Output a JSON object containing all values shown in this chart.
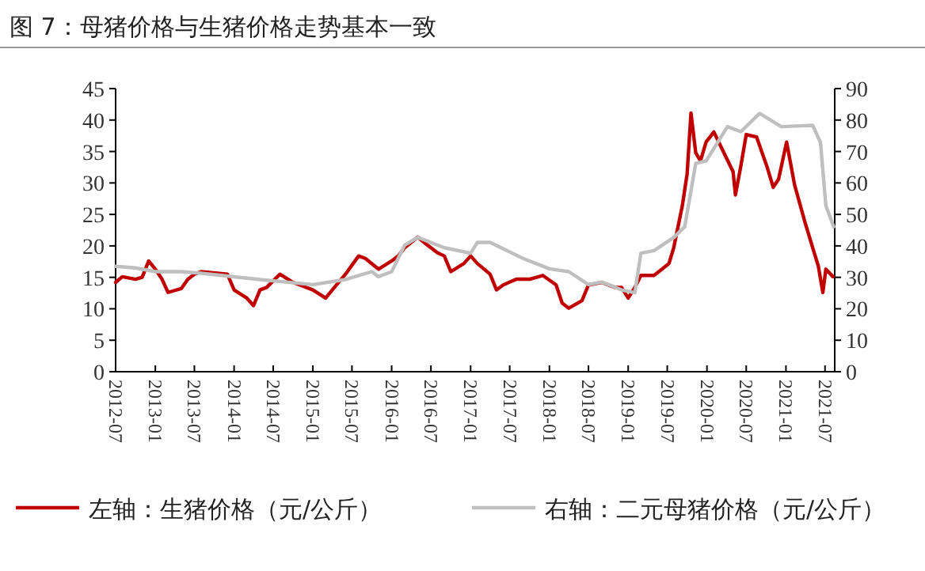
{
  "chart_data": {
    "type": "line",
    "title": "图 7：母猪价格与生猪价格走势基本一致",
    "xlim": [
      "2012-07",
      "2021-08-15"
    ],
    "xticks": [
      "2012-07",
      "2013-01",
      "2013-07",
      "2014-01",
      "2014-07",
      "2015-01",
      "2015-07",
      "2016-01",
      "2016-07",
      "2017-01",
      "2017-07",
      "2018-01",
      "2018-07",
      "2019-01",
      "2019-07",
      "2020-01",
      "2020-07",
      "2021-01",
      "2021-07"
    ],
    "ylim": [
      0,
      45
    ],
    "yticks": [
      0,
      5,
      10,
      15,
      20,
      25,
      30,
      35,
      40,
      45
    ],
    "y2lim": [
      0,
      90
    ],
    "y2ticks": [
      0,
      10,
      20,
      30,
      40,
      50,
      60,
      70,
      80,
      90
    ],
    "grid": false,
    "legend": "bottom",
    "marker": "none",
    "line_style": "solid",
    "series": [
      {
        "name": "左轴：生猪价格（元/公斤）",
        "color": "#c00000",
        "x": [
          "2012-07",
          "2012-08",
          "2012-10",
          "2012-11",
          "2012-12",
          "2013-01",
          "2013-02",
          "2013-03",
          "2013-05",
          "2013-06",
          "2013-07",
          "2013-08",
          "2013-12",
          "2014-01",
          "2014-03",
          "2014-04",
          "2014-05",
          "2014-06",
          "2014-08",
          "2014-10",
          "2015-01",
          "2015-03",
          "2015-04",
          "2015-06",
          "2015-08",
          "2015-09",
          "2015-11",
          "2016-01",
          "2016-02",
          "2016-03",
          "2016-05",
          "2016-06",
          "2016-08",
          "2016-09",
          "2016-10",
          "2016-12",
          "2017-01",
          "2017-02",
          "2017-04",
          "2017-05",
          "2017-06",
          "2017-08",
          "2017-10",
          "2017-12",
          "2018-02",
          "2018-03",
          "2018-04",
          "2018-06",
          "2018-07",
          "2018-09",
          "2018-11",
          "2018-12",
          "2019-01",
          "2019-02",
          "2019-03",
          "2019-05",
          "2019-07-09",
          "2019-07-31",
          "2019-09-09",
          "2019-10-01",
          "2019-10-19",
          "2019-11-10",
          "2019-12-02",
          "2019-12-28",
          "2020-02-02",
          "2020-03-25",
          "2020-05-01",
          "2020-05-12",
          "2020-06-06",
          "2020-07-01",
          "2020-08-18",
          "2020-10-08",
          "2020-11-03",
          "2020-11-28",
          "2021-01-04",
          "2021-02-10",
          "2021-03-29",
          "2021-05-05",
          "2021-05-31",
          "2021-06-21",
          "2021-07-05",
          "2021-08-07"
        ],
        "values": [
          14.2,
          15.1,
          14.7,
          15.0,
          17.6,
          16.3,
          14.7,
          12.6,
          13.2,
          14.7,
          15.5,
          15.9,
          15.5,
          13.0,
          11.7,
          10.5,
          13.0,
          13.4,
          15.5,
          14.2,
          13.0,
          11.7,
          13.0,
          15.5,
          18.4,
          18.0,
          16.3,
          17.6,
          18.4,
          19.7,
          21.4,
          20.5,
          18.9,
          18.4,
          15.9,
          17.2,
          18.4,
          17.2,
          15.5,
          13.0,
          13.8,
          14.7,
          14.7,
          15.3,
          13.8,
          10.9,
          10.1,
          11.3,
          13.8,
          14.2,
          13.4,
          13.4,
          11.7,
          13.4,
          15.3,
          15.3,
          17.2,
          19.7,
          26.4,
          31.4,
          41.1,
          34.8,
          33.5,
          36.5,
          38.1,
          34.4,
          31.8,
          28.1,
          32.7,
          37.7,
          37.3,
          32.3,
          29.3,
          30.6,
          36.5,
          29.7,
          23.9,
          19.7,
          16.8,
          12.6,
          16.3,
          15.1
        ]
      },
      {
        "name": "右轴：二元母猪价格（元/公斤）",
        "color": "#bfbfbf",
        "axis": "y2",
        "x": [
          "2012-07",
          "2012-10",
          "2013-01",
          "2013-05",
          "2013-08",
          "2014-05",
          "2015-01",
          "2015-06",
          "2015-10",
          "2015-11",
          "2016-01",
          "2016-03",
          "2016-05",
          "2016-09",
          "2017-01",
          "2017-02",
          "2017-04",
          "2017-09",
          "2018-01",
          "2018-04",
          "2018-07",
          "2018-09",
          "2018-12",
          "2019-02",
          "2019-03",
          "2019-05",
          "2019-08",
          "2019-09-20",
          "2019-11-10",
          "2019-12-28",
          "2020-04-05",
          "2020-06-06",
          "2020-09-01",
          "2020-12-10",
          "2021-05-05",
          "2021-06-10",
          "2021-07-05",
          "2021-08-10"
        ],
        "values": [
          33.5,
          33.0,
          31.8,
          31.8,
          31.3,
          29.3,
          27.7,
          29.3,
          31.8,
          30.2,
          31.8,
          40.2,
          42.7,
          39.4,
          37.7,
          41.1,
          41.1,
          36.0,
          32.7,
          31.8,
          27.7,
          28.5,
          26.0,
          25.1,
          37.7,
          38.5,
          42.7,
          46.1,
          66.2,
          67.0,
          77.9,
          76.3,
          82.1,
          77.9,
          78.3,
          72.9,
          52.8,
          46.1
        ]
      }
    ]
  }
}
